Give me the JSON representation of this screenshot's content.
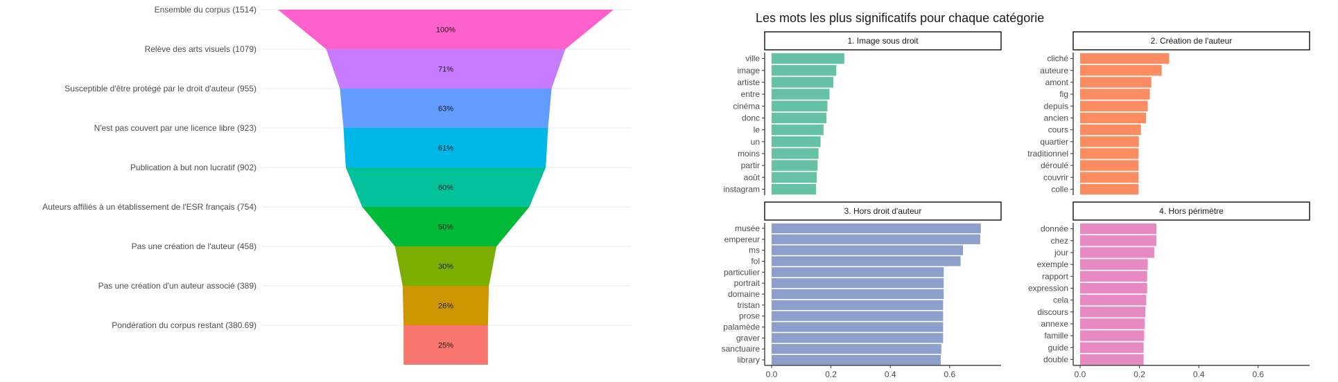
{
  "chart_data": [
    {
      "type": "bar",
      "subtype": "funnel",
      "grid": true,
      "stages": [
        {
          "label": "Ensemble du corpus (1514)",
          "value": 1514,
          "pct": "100%",
          "color": "#FF61CC"
        },
        {
          "label": "Relève des arts visuels (1079)",
          "value": 1079,
          "pct": "71%",
          "color": "#C77CFF"
        },
        {
          "label": "Susceptible d'être protégé par le droit d'auteur (955)",
          "value": 955,
          "pct": "63%",
          "color": "#619CFF"
        },
        {
          "label": "N'est pas couvert par une licence libre (923)",
          "value": 923,
          "pct": "61%",
          "color": "#00B8E7"
        },
        {
          "label": "Publication à but non lucratif (902)",
          "value": 902,
          "pct": "60%",
          "color": "#00C19A"
        },
        {
          "label": "Auteurs affiliés à un établissement de l'ESR français (754)",
          "value": 754,
          "pct": "50%",
          "color": "#00BA38"
        },
        {
          "label": "Pas une création de l'auteur (458)",
          "value": 458,
          "pct": "30%",
          "color": "#7CAE00"
        },
        {
          "label": "Pas une création d'un auteur associé (389)",
          "value": 389,
          "pct": "26%",
          "color": "#CD9600"
        },
        {
          "label": "Pondération du corpus restant (380.69)",
          "value": 380.69,
          "pct": "25%",
          "color": "#F8766D"
        }
      ]
    },
    {
      "type": "bar",
      "orientation": "horizontal",
      "title": "Les mots les plus significatifs pour chaque catégorie",
      "xlim": [
        0,
        0.75
      ],
      "xticks": [
        "0.0",
        "0.2",
        "0.4",
        "0.6"
      ],
      "facets": [
        {
          "name": "1. Image sous droit",
          "color": "#66C2A5",
          "words": [
            "ville",
            "image",
            "artiste",
            "entre",
            "cinéma",
            "donc",
            "le",
            "un",
            "moins",
            "partir",
            "août",
            "instagram"
          ],
          "values": [
            0.245,
            0.218,
            0.208,
            0.195,
            0.188,
            0.185,
            0.175,
            0.165,
            0.158,
            0.155,
            0.152,
            0.15
          ]
        },
        {
          "name": "2. Création de l'auteur",
          "color": "#FC8D62",
          "words": [
            "cliché",
            "auteure",
            "amont",
            "fig",
            "depuis",
            "ancien",
            "cours",
            "quartier",
            "traditionnel",
            "déroulé",
            "couvrir",
            "colle"
          ],
          "values": [
            0.3,
            0.275,
            0.24,
            0.235,
            0.228,
            0.222,
            0.205,
            0.198,
            0.197,
            0.197,
            0.197,
            0.197
          ]
        },
        {
          "name": "3. Hors droit d'auteur",
          "color": "#8DA0CB",
          "words": [
            "musée",
            "empereur",
            "ms",
            "fol",
            "particulier",
            "portrait",
            "domaine",
            "tristan",
            "prose",
            "palamède",
            "graver",
            "sanctuaire",
            "library"
          ],
          "values": [
            0.705,
            0.703,
            0.645,
            0.637,
            0.58,
            0.58,
            0.58,
            0.578,
            0.578,
            0.578,
            0.578,
            0.572,
            0.57
          ]
        },
        {
          "name": "4. Hors périmètre",
          "color": "#E78AC3",
          "words": [
            "donnée",
            "chez",
            "jour",
            "exemple",
            "rapport",
            "expression",
            "cela",
            "discours",
            "annexe",
            "famille",
            "guide",
            "double"
          ],
          "values": [
            0.257,
            0.257,
            0.25,
            0.228,
            0.226,
            0.226,
            0.223,
            0.22,
            0.218,
            0.216,
            0.214,
            0.214
          ]
        }
      ]
    }
  ]
}
